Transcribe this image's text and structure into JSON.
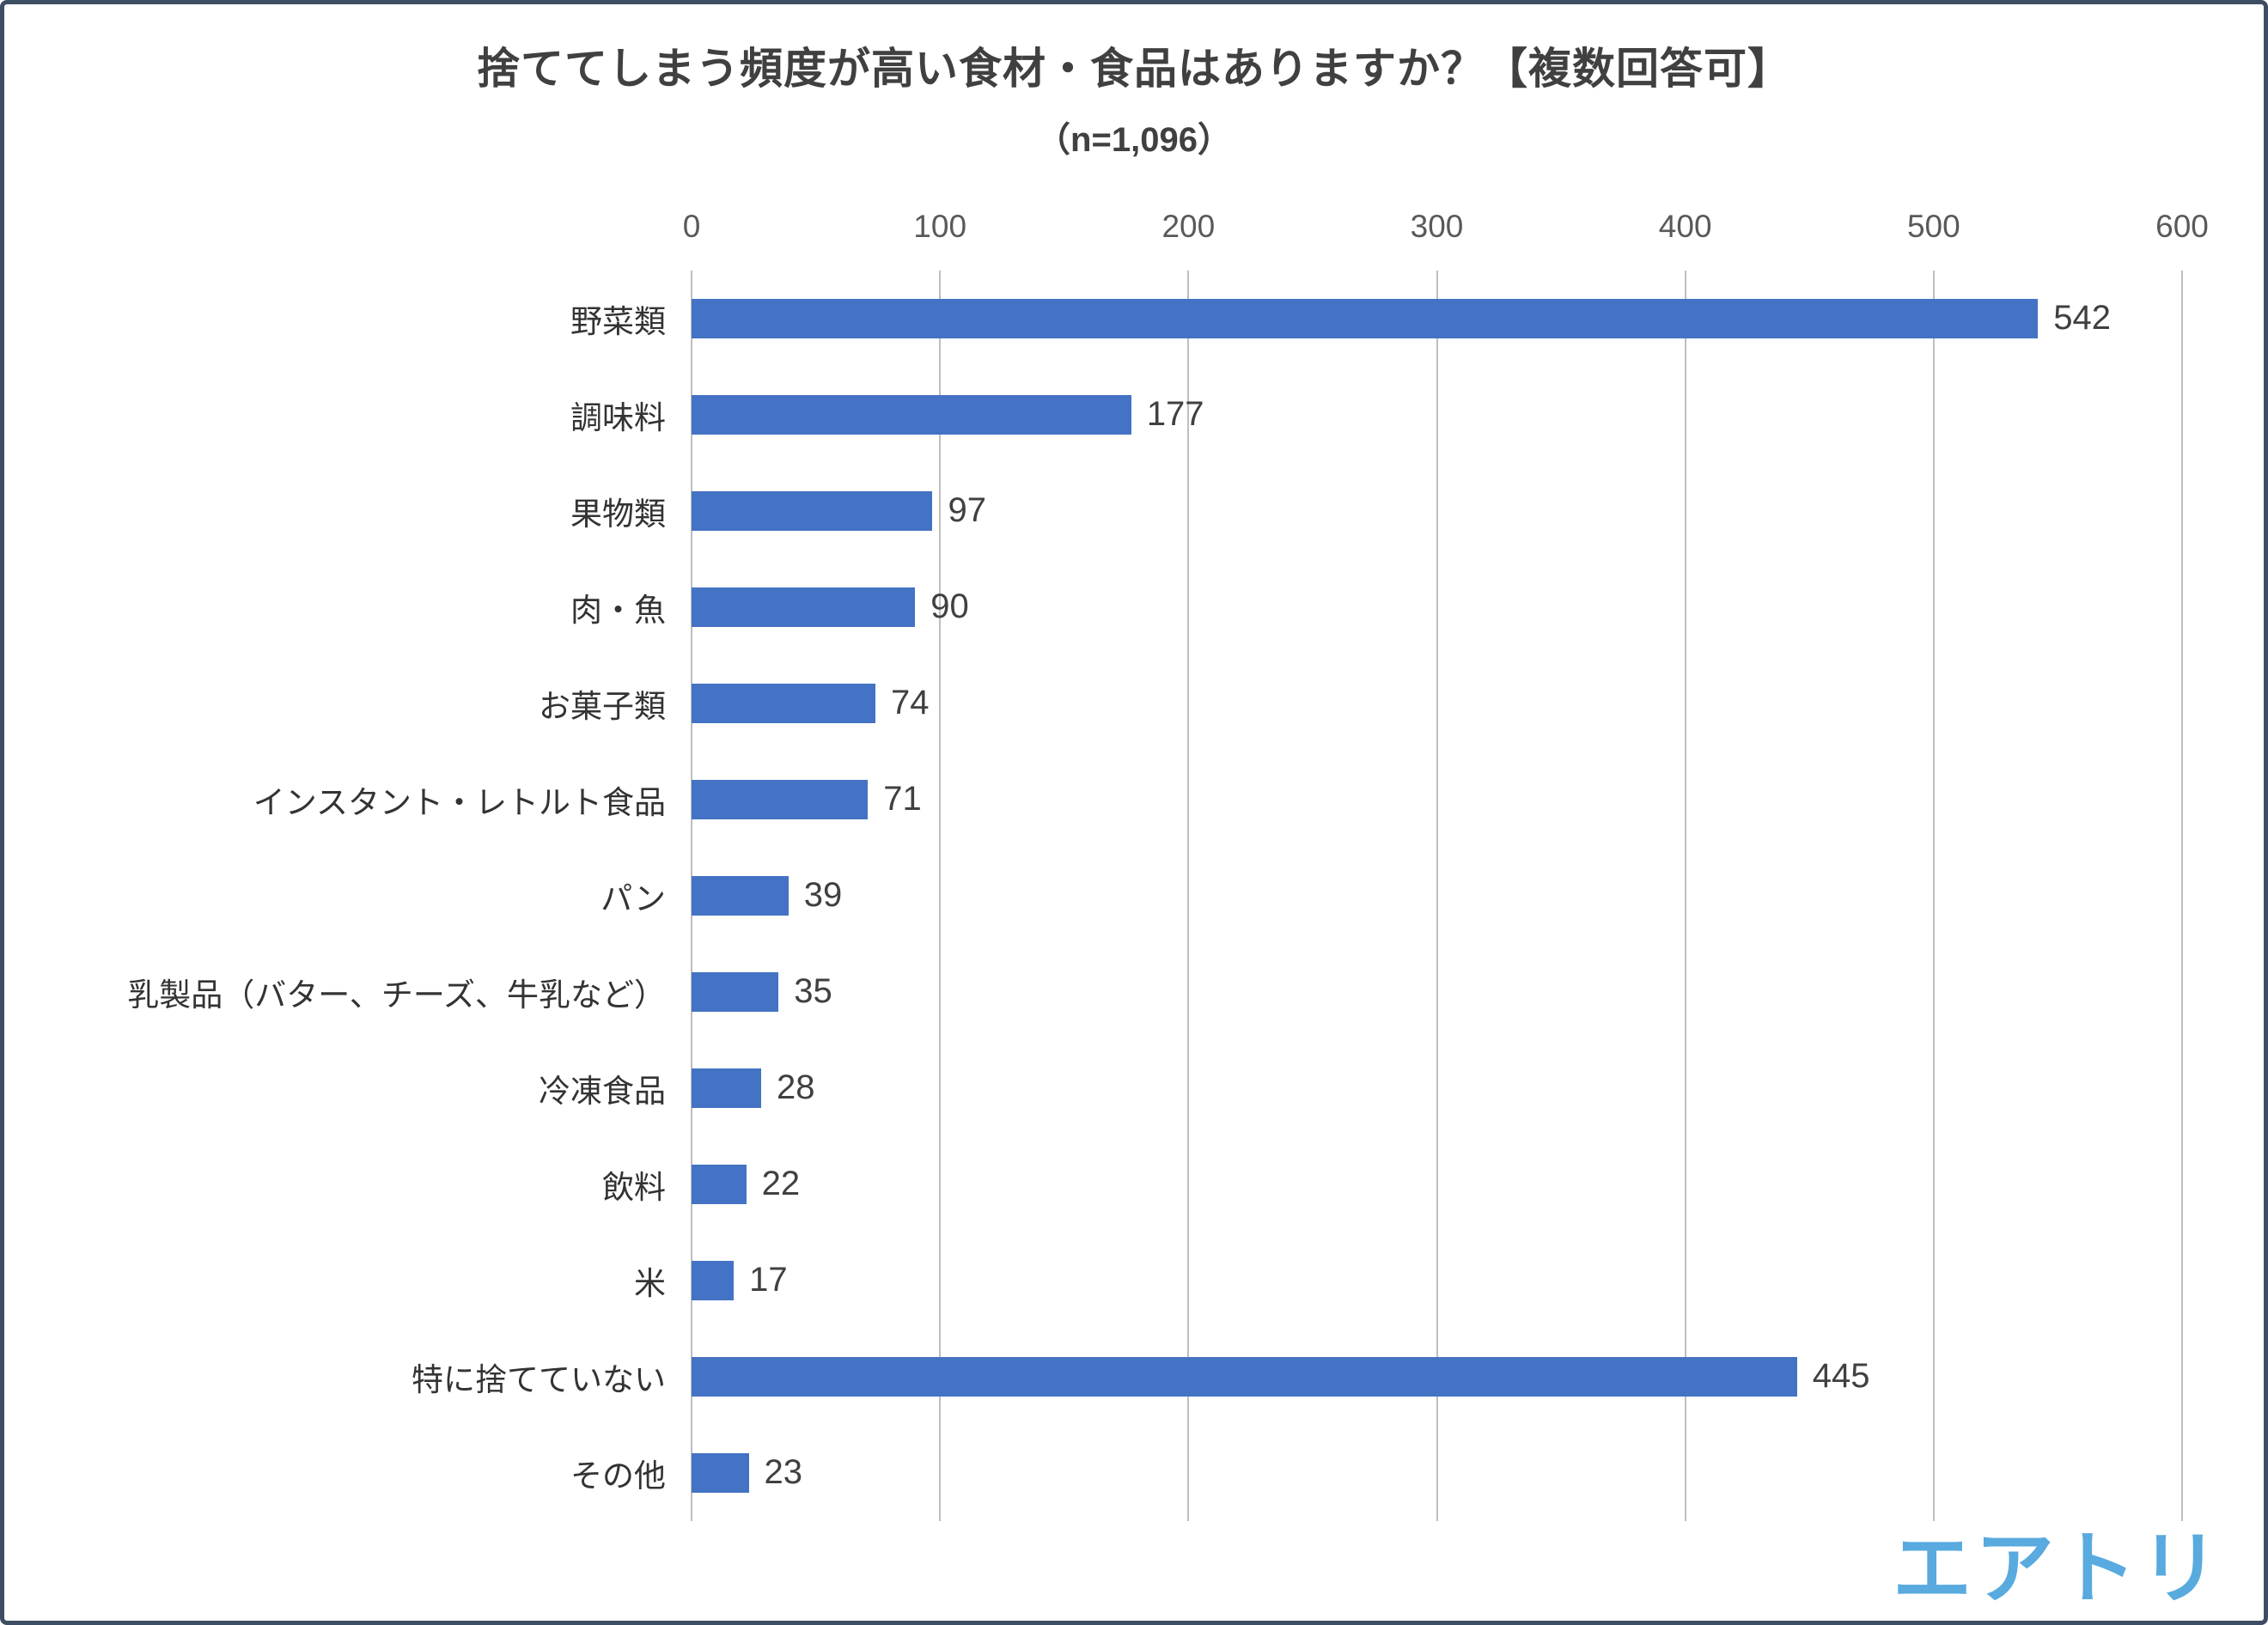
{
  "title": "捨ててしまう頻度が高い食材・食品はありますか？【複数回答可】",
  "subtitle": "（n=1,096）",
  "logo_text": "エアトリ",
  "colors": {
    "bar": "#4472C4",
    "gridline": "#BFBFBF",
    "title_text": "#404040",
    "axis_text": "#595959",
    "logo": "#58AADF",
    "frame_border": "#3D4D63"
  },
  "chart_data": {
    "type": "bar",
    "orientation": "horizontal",
    "title": "捨ててしまう頻度が高い食材・食品はありますか？【複数回答可】",
    "subtitle": "（n=1,096）",
    "categories": [
      "野菜類",
      "調味料",
      "果物類",
      "肉・魚",
      "お菓子類",
      "インスタント・レトルト食品",
      "パン",
      "乳製品（バター、チーズ、牛乳など）",
      "冷凍食品",
      "飲料",
      "米",
      "特に捨てていない",
      "その他"
    ],
    "values": [
      542,
      177,
      97,
      90,
      74,
      71,
      39,
      35,
      28,
      22,
      17,
      445,
      23
    ],
    "xlim": [
      0,
      600
    ],
    "xticks": [
      0,
      100,
      200,
      300,
      400,
      500,
      600
    ],
    "grid": true,
    "value_labels": true,
    "legend": "none",
    "axis_position": "top"
  }
}
